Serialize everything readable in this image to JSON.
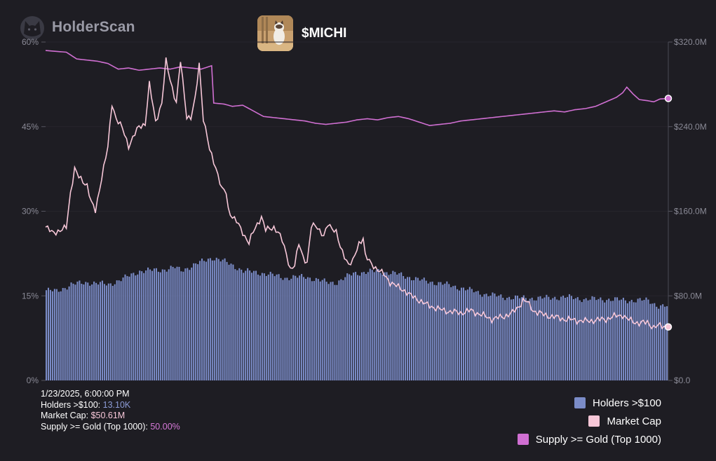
{
  "brand": {
    "name": "HolderScan",
    "logo_icon": "cat-head-icon"
  },
  "token": {
    "symbol": "$MICHI",
    "avatar_icon": "cat-photo-icon"
  },
  "tooltip": {
    "datetime": "1/23/2025, 6:00:00 PM",
    "holders_label": "Holders >$100:",
    "holders_value": "13.10K",
    "mcap_label": "Market Cap:",
    "mcap_value": "$50.61M",
    "supply_label": "Supply >= Gold (Top 1000):",
    "supply_value": "50.00%"
  },
  "colors": {
    "holders": "#7b8cc8",
    "mcap": "#f7c7d8",
    "supply": "#d06fd2",
    "background": "#1e1d23"
  },
  "chart_data": {
    "type": "bar",
    "x_points": 300,
    "left_axis": {
      "ticks": [
        "0%",
        "15%",
        "30%",
        "45%",
        "60%"
      ],
      "values": [
        0,
        15,
        30,
        45,
        60
      ]
    },
    "right_axis": {
      "ticks": [
        "$0.0",
        "$80.0M",
        "$160.0M",
        "$240.0M",
        "$320.0M"
      ],
      "values": [
        0,
        80,
        160,
        240,
        320
      ]
    },
    "legend": [
      "Holders >$100",
      "Market Cap",
      "Supply >= Gold (Top 1000)"
    ],
    "series": [
      {
        "name": "Holders >$100",
        "axis": "left",
        "unit": "%",
        "keypoints": [
          [
            0,
            16
          ],
          [
            5,
            15.8
          ],
          [
            12,
            17
          ],
          [
            20,
            17.4
          ],
          [
            30,
            17
          ],
          [
            38,
            18.2
          ],
          [
            45,
            19.4
          ],
          [
            55,
            19.6
          ],
          [
            62,
            20
          ],
          [
            65,
            19.5
          ],
          [
            72,
            20.6
          ],
          [
            76,
            21.2
          ],
          [
            80,
            21.8
          ],
          [
            85,
            21.2
          ],
          [
            90,
            20.4
          ],
          [
            95,
            19.4
          ],
          [
            105,
            19
          ],
          [
            115,
            18.2
          ],
          [
            125,
            18.4
          ],
          [
            135,
            17.4
          ],
          [
            140,
            17.4
          ],
          [
            148,
            19
          ],
          [
            160,
            19.4
          ],
          [
            170,
            18.8
          ],
          [
            180,
            17.8
          ],
          [
            190,
            17.2
          ],
          [
            200,
            16.4
          ],
          [
            210,
            15.4
          ],
          [
            220,
            14.8
          ],
          [
            230,
            14.6
          ],
          [
            240,
            14.6
          ],
          [
            250,
            14.8
          ],
          [
            260,
            14.4
          ],
          [
            270,
            14.4
          ],
          [
            280,
            14.2
          ],
          [
            290,
            14.2
          ],
          [
            295,
            13.2
          ],
          [
            300,
            13.1
          ]
        ]
      },
      {
        "name": "Market Cap",
        "axis": "right",
        "unit": "$M",
        "keypoints": [
          [
            0,
            145
          ],
          [
            3,
            140
          ],
          [
            8,
            142
          ],
          [
            10,
            145
          ],
          [
            12,
            178
          ],
          [
            14,
            200
          ],
          [
            16,
            192
          ],
          [
            20,
            185
          ],
          [
            22,
            168
          ],
          [
            24,
            160
          ],
          [
            27,
            192
          ],
          [
            30,
            220
          ],
          [
            32,
            262
          ],
          [
            34,
            248
          ],
          [
            37,
            238
          ],
          [
            40,
            222
          ],
          [
            45,
            240
          ],
          [
            48,
            243
          ],
          [
            50,
            280
          ],
          [
            53,
            245
          ],
          [
            56,
            262
          ],
          [
            58,
            302
          ],
          [
            60,
            285
          ],
          [
            63,
            262
          ],
          [
            65,
            302
          ],
          [
            68,
            250
          ],
          [
            70,
            248
          ],
          [
            72,
            265
          ],
          [
            74,
            300
          ],
          [
            76,
            248
          ],
          [
            79,
            218
          ],
          [
            82,
            202
          ],
          [
            85,
            180
          ],
          [
            87,
            178
          ],
          [
            88,
            162
          ],
          [
            90,
            155
          ],
          [
            92,
            150
          ],
          [
            95,
            140
          ],
          [
            98,
            130
          ],
          [
            100,
            140
          ],
          [
            102,
            148
          ],
          [
            104,
            155
          ],
          [
            106,
            142
          ],
          [
            110,
            145
          ],
          [
            112,
            140
          ],
          [
            114,
            132
          ],
          [
            116,
            120
          ],
          [
            118,
            105
          ],
          [
            120,
            108
          ],
          [
            122,
            130
          ],
          [
            124,
            118
          ],
          [
            126,
            110
          ],
          [
            128,
            145
          ],
          [
            130,
            148
          ],
          [
            132,
            142
          ],
          [
            134,
            135
          ],
          [
            136,
            148
          ],
          [
            138,
            145
          ],
          [
            140,
            140
          ],
          [
            142,
            125
          ],
          [
            144,
            118
          ],
          [
            146,
            110
          ],
          [
            148,
            112
          ],
          [
            151,
            130
          ],
          [
            153,
            135
          ],
          [
            154,
            118
          ],
          [
            156,
            112
          ],
          [
            160,
            105
          ],
          [
            163,
            100
          ],
          [
            166,
            93
          ],
          [
            170,
            88
          ],
          [
            173,
            85
          ],
          [
            176,
            80
          ],
          [
            180,
            76
          ],
          [
            183,
            72
          ],
          [
            186,
            70
          ],
          [
            190,
            67
          ],
          [
            195,
            65
          ],
          [
            200,
            64
          ],
          [
            205,
            66
          ],
          [
            210,
            62
          ],
          [
            215,
            58
          ],
          [
            220,
            60
          ],
          [
            225,
            64
          ],
          [
            228,
            70
          ],
          [
            230,
            76
          ],
          [
            232,
            74
          ],
          [
            235,
            66
          ],
          [
            240,
            62
          ],
          [
            245,
            60
          ],
          [
            250,
            58
          ],
          [
            255,
            57
          ],
          [
            260,
            56
          ],
          [
            265,
            57
          ],
          [
            270,
            58
          ],
          [
            275,
            61
          ],
          [
            278,
            62
          ],
          [
            280,
            58
          ],
          [
            283,
            56
          ],
          [
            286,
            54
          ],
          [
            290,
            55
          ],
          [
            293,
            50
          ],
          [
            296,
            52
          ],
          [
            300,
            50.61
          ]
        ]
      },
      {
        "name": "Supply >= Gold (Top 1000)",
        "axis": "left",
        "unit": "%",
        "keypoints": [
          [
            0,
            58.5
          ],
          [
            10,
            58.2
          ],
          [
            15,
            57
          ],
          [
            25,
            56.6
          ],
          [
            30,
            56.2
          ],
          [
            35,
            55.2
          ],
          [
            40,
            55.4
          ],
          [
            45,
            55
          ],
          [
            50,
            55.2
          ],
          [
            55,
            55.4
          ],
          [
            60,
            55.2
          ],
          [
            65,
            55.6
          ],
          [
            70,
            55.4
          ],
          [
            75,
            55.2
          ],
          [
            80,
            55.8
          ],
          [
            80.5,
            49.2
          ],
          [
            86,
            49
          ],
          [
            90,
            48.6
          ],
          [
            95,
            48.8
          ],
          [
            100,
            47.8
          ],
          [
            105,
            46.8
          ],
          [
            110,
            46.6
          ],
          [
            115,
            46.4
          ],
          [
            120,
            46.2
          ],
          [
            125,
            46
          ],
          [
            130,
            45.6
          ],
          [
            135,
            45.4
          ],
          [
            140,
            45.6
          ],
          [
            145,
            45.8
          ],
          [
            150,
            46.2
          ],
          [
            155,
            46.4
          ],
          [
            160,
            46.2
          ],
          [
            165,
            46.6
          ],
          [
            170,
            46.8
          ],
          [
            175,
            46.4
          ],
          [
            180,
            45.8
          ],
          [
            185,
            45.2
          ],
          [
            190,
            45.4
          ],
          [
            195,
            45.6
          ],
          [
            200,
            46
          ],
          [
            210,
            46.4
          ],
          [
            215,
            46.6
          ],
          [
            220,
            46.8
          ],
          [
            225,
            47
          ],
          [
            230,
            47.2
          ],
          [
            235,
            47.4
          ],
          [
            240,
            47.6
          ],
          [
            245,
            47.8
          ],
          [
            250,
            47.6
          ],
          [
            255,
            48
          ],
          [
            260,
            48.2
          ],
          [
            265,
            48.6
          ],
          [
            270,
            49.4
          ],
          [
            275,
            50.2
          ],
          [
            278,
            51
          ],
          [
            280,
            52
          ],
          [
            283,
            50.8
          ],
          [
            286,
            49.8
          ],
          [
            290,
            49.6
          ],
          [
            293,
            49.4
          ],
          [
            296,
            49.9
          ],
          [
            300,
            50
          ]
        ]
      }
    ]
  }
}
